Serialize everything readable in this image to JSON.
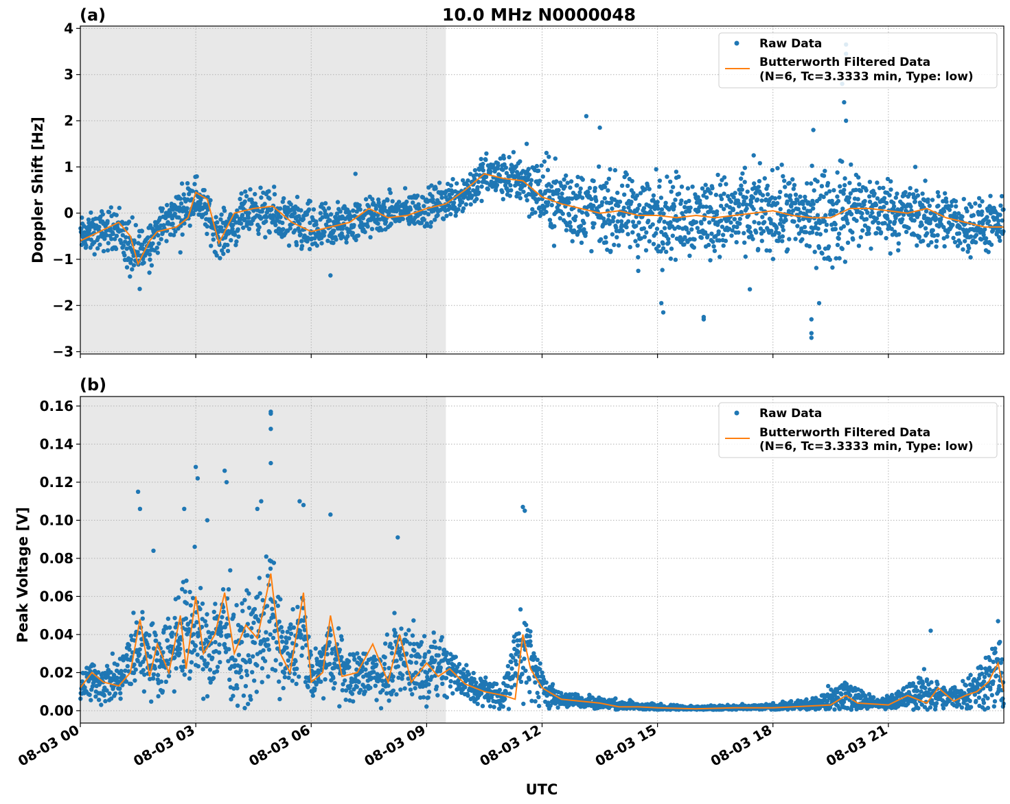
{
  "title": "10.0 MHz N0000048",
  "xlabel": "UTC",
  "x_ticks": [
    "08-03 00",
    "08-03 03",
    "08-03 06",
    "08-03 09",
    "08-03 12",
    "08-03 15",
    "08-03 18",
    "08-03 21"
  ],
  "colors": {
    "raw": "#1f77b4",
    "filtered": "#ff7f0e",
    "shade": "#e8e8e8",
    "grid": "#b0b0b0"
  },
  "chart_data": [
    {
      "type": "scatter",
      "panel_label": "(a)",
      "ylabel": "Doppler Shift [Hz]",
      "xlim_hours": [
        0,
        24
      ],
      "ylim": [
        -3.05,
        4.05
      ],
      "y_ticks": [
        "−3",
        "−2",
        "−1",
        "0",
        "1",
        "2",
        "3",
        "4"
      ],
      "y_tick_values": [
        -3,
        -2,
        -1,
        0,
        1,
        2,
        3,
        4
      ],
      "grid": true,
      "legend_position": "top-right",
      "shaded_region_hours": [
        0,
        9.5
      ],
      "legend": [
        {
          "marker": "dot",
          "label": "Raw Data"
        },
        {
          "marker": "line",
          "label": "Butterworth Filtered Data",
          "label2": "(N=6, Tc=3.3333 min, Type: low)"
        }
      ],
      "series": [
        {
          "name": "Butterworth Filtered Data",
          "x_hours": [
            0,
            0.5,
            1,
            1.3,
            1.5,
            1.8,
            2,
            2.5,
            2.8,
            3,
            3.3,
            3.6,
            4,
            4.5,
            5,
            5.5,
            6,
            6.5,
            7,
            7.5,
            8,
            8.5,
            9,
            9.5,
            10,
            10.5,
            11,
            11.5,
            12,
            12.5,
            13,
            13.5,
            14,
            14.5,
            15,
            15.5,
            16,
            16.5,
            17,
            17.5,
            18,
            18.5,
            19,
            19.5,
            20,
            20.5,
            21,
            21.5,
            22,
            22.5,
            23,
            23.5,
            24
          ],
          "y_values": [
            -0.6,
            -0.4,
            -0.2,
            -0.5,
            -1.1,
            -0.6,
            -0.4,
            -0.3,
            -0.1,
            0.45,
            0.3,
            -0.65,
            0,
            0.1,
            0.15,
            -0.2,
            -0.4,
            -0.3,
            -0.2,
            0.1,
            -0.1,
            -0.05,
            0.1,
            0.2,
            0.5,
            0.85,
            0.75,
            0.7,
            0.35,
            0.2,
            0.1,
            0,
            0.05,
            -0.05,
            -0.05,
            -0.1,
            -0.05,
            -0.1,
            -0.05,
            0,
            0.05,
            -0.05,
            -0.1,
            -0.1,
            0.1,
            0.1,
            0.05,
            0,
            0.1,
            -0.1,
            -0.2,
            -0.3,
            -0.3
          ]
        },
        {
          "name": "Raw Data",
          "x_hours": [
            0,
            1,
            1.4,
            2,
            3,
            3.6,
            4.5,
            6,
            6.5,
            7,
            8,
            9,
            10,
            10.5,
            11.5,
            12,
            12.5,
            13,
            13.5,
            14,
            14.5,
            15,
            16,
            17,
            18,
            19,
            19.5,
            20,
            20.5,
            21,
            22,
            23,
            24
          ],
          "y_values": [
            -0.5,
            -0.3,
            -1.0,
            -0.4,
            0.4,
            -0.5,
            0.1,
            -0.4,
            -0.3,
            -0.2,
            0,
            0.1,
            0.45,
            0.8,
            0.75,
            0.4,
            0.25,
            0.1,
            0.05,
            0,
            -0.05,
            -0.05,
            -0.05,
            -0.05,
            0,
            -0.05,
            -0.1,
            0.1,
            0.05,
            0.05,
            -0.1,
            -0.25,
            -0.3
          ],
          "spread": [
            0.3,
            0.35,
            0.55,
            0.35,
            0.35,
            0.35,
            0.35,
            0.45,
            0.4,
            0.35,
            0.3,
            0.3,
            0.35,
            0.35,
            0.4,
            0.6,
            0.6,
            0.65,
            0.6,
            0.6,
            0.65,
            0.7,
            0.65,
            0.65,
            0.65,
            0.7,
            0.8,
            0.8,
            0.6,
            0.55,
            0.5,
            0.45,
            0.4
          ],
          "outliers": [
            [
              2.6,
              -0.85
            ],
            [
              6.5,
              -1.35
            ],
            [
              7.15,
              0.85
            ],
            [
              11.6,
              1.5
            ],
            [
              13.15,
              2.1
            ],
            [
              13.5,
              1.85
            ],
            [
              14.5,
              -1.25
            ],
            [
              15.1,
              -1.95
            ],
            [
              15.15,
              -2.15
            ],
            [
              16.2,
              -2.25
            ],
            [
              16.2,
              -2.3
            ],
            [
              17.4,
              -1.65
            ],
            [
              17.5,
              1.25
            ],
            [
              19,
              -2.3
            ],
            [
              19,
              -2.6
            ],
            [
              19,
              -2.7
            ],
            [
              19.05,
              1.8
            ],
            [
              19.8,
              2.8
            ],
            [
              19.85,
              2.4
            ],
            [
              19.9,
              2.0
            ],
            [
              19.9,
              3.65
            ],
            [
              19.9,
              3.45
            ],
            [
              19.2,
              -1.95
            ],
            [
              21.7,
              1.0
            ]
          ]
        }
      ]
    },
    {
      "type": "scatter",
      "panel_label": "(b)",
      "ylabel": "Peak Voltage [V]",
      "xlim_hours": [
        0,
        24
      ],
      "ylim": [
        -0.0065,
        0.165
      ],
      "y_ticks": [
        "0.00",
        "0.02",
        "0.04",
        "0.06",
        "0.08",
        "0.10",
        "0.12",
        "0.14",
        "0.16"
      ],
      "y_tick_values": [
        0,
        0.02,
        0.04,
        0.06,
        0.08,
        0.1,
        0.12,
        0.14,
        0.16
      ],
      "grid": true,
      "legend_position": "top-right",
      "shaded_region_hours": [
        0,
        9.5
      ],
      "legend": [
        {
          "marker": "dot",
          "label": "Raw Data"
        },
        {
          "marker": "line",
          "label": "Butterworth Filtered Data",
          "label2": "(N=6, Tc=3.3333 min, Type: low)"
        }
      ],
      "series": [
        {
          "name": "Butterworth Filtered Data",
          "x_hours": [
            0,
            0.3,
            0.6,
            1,
            1.3,
            1.55,
            1.8,
            2,
            2.3,
            2.6,
            2.75,
            3,
            3.2,
            3.5,
            3.75,
            4,
            4.3,
            4.6,
            4.95,
            5.2,
            5.45,
            5.8,
            6,
            6.3,
            6.5,
            6.8,
            7.2,
            7.6,
            8,
            8.3,
            8.6,
            9,
            9.3,
            9.6,
            10,
            10.5,
            11,
            11.3,
            11.5,
            11.7,
            12,
            12.5,
            13,
            13.5,
            14,
            14.5,
            15,
            16,
            17,
            18,
            19,
            19.5,
            19.9,
            20.2,
            21,
            21.5,
            22,
            22.3,
            22.7,
            23,
            23.3,
            23.6,
            23.85,
            24
          ],
          "y_values": [
            0.012,
            0.02,
            0.015,
            0.013,
            0.02,
            0.048,
            0.018,
            0.035,
            0.02,
            0.05,
            0.022,
            0.06,
            0.03,
            0.04,
            0.062,
            0.03,
            0.045,
            0.038,
            0.072,
            0.03,
            0.02,
            0.062,
            0.015,
            0.02,
            0.05,
            0.018,
            0.02,
            0.035,
            0.015,
            0.04,
            0.015,
            0.025,
            0.018,
            0.022,
            0.014,
            0.01,
            0.008,
            0.006,
            0.04,
            0.022,
            0.012,
            0.006,
            0.005,
            0.004,
            0.002,
            0.002,
            0.0015,
            0.001,
            0.0015,
            0.0015,
            0.0025,
            0.003,
            0.008,
            0.004,
            0.003,
            0.008,
            0.004,
            0.012,
            0.005,
            0.008,
            0.01,
            0.015,
            0.025,
            0.01
          ]
        },
        {
          "name": "Raw Data",
          "x_hours": [
            0,
            1,
            1.55,
            2,
            2.6,
            3,
            3.2,
            3.75,
            4,
            4.5,
            4.95,
            5.3,
            5.8,
            6,
            6.5,
            7,
            7.5,
            8,
            8.3,
            9,
            9.5,
            10,
            10.5,
            11,
            11.5,
            12,
            12.5,
            13,
            14,
            15,
            16,
            17,
            18,
            19,
            19.9,
            20.5,
            21,
            22,
            22.5,
            23,
            23.85,
            24
          ],
          "y_values": [
            0.015,
            0.015,
            0.035,
            0.025,
            0.04,
            0.045,
            0.03,
            0.045,
            0.03,
            0.035,
            0.05,
            0.025,
            0.04,
            0.015,
            0.03,
            0.018,
            0.02,
            0.02,
            0.03,
            0.022,
            0.025,
            0.014,
            0.01,
            0.008,
            0.035,
            0.012,
            0.006,
            0.005,
            0.003,
            0.0015,
            0.0012,
            0.0015,
            0.0018,
            0.003,
            0.008,
            0.004,
            0.004,
            0.01,
            0.006,
            0.009,
            0.02,
            0.012
          ],
          "spread": [
            0.008,
            0.009,
            0.018,
            0.012,
            0.02,
            0.025,
            0.015,
            0.025,
            0.02,
            0.02,
            0.025,
            0.015,
            0.02,
            0.008,
            0.015,
            0.01,
            0.01,
            0.012,
            0.018,
            0.012,
            0.012,
            0.008,
            0.006,
            0.005,
            0.02,
            0.008,
            0.003,
            0.003,
            0.002,
            0.0015,
            0.001,
            0.001,
            0.0015,
            0.002,
            0.008,
            0.003,
            0.003,
            0.008,
            0.004,
            0.006,
            0.015,
            0.008
          ],
          "outliers": [
            [
              1.5,
              0.115
            ],
            [
              1.55,
              0.106
            ],
            [
              1.9,
              0.084
            ],
            [
              2.7,
              0.106
            ],
            [
              3,
              0.128
            ],
            [
              3.05,
              0.122
            ],
            [
              3.3,
              0.1
            ],
            [
              3.75,
              0.126
            ],
            [
              3.8,
              0.12
            ],
            [
              4.6,
              0.106
            ],
            [
              4.7,
              0.11
            ],
            [
              4.95,
              0.157
            ],
            [
              4.95,
              0.156
            ],
            [
              4.95,
              0.148
            ],
            [
              4.95,
              0.13
            ],
            [
              5.7,
              0.11
            ],
            [
              5.8,
              0.108
            ],
            [
              6.5,
              0.103
            ],
            [
              8.25,
              0.091
            ],
            [
              11.5,
              0.107
            ],
            [
              11.55,
              0.105
            ],
            [
              22.1,
              0.042
            ],
            [
              23.85,
              0.047
            ]
          ]
        }
      ]
    }
  ]
}
